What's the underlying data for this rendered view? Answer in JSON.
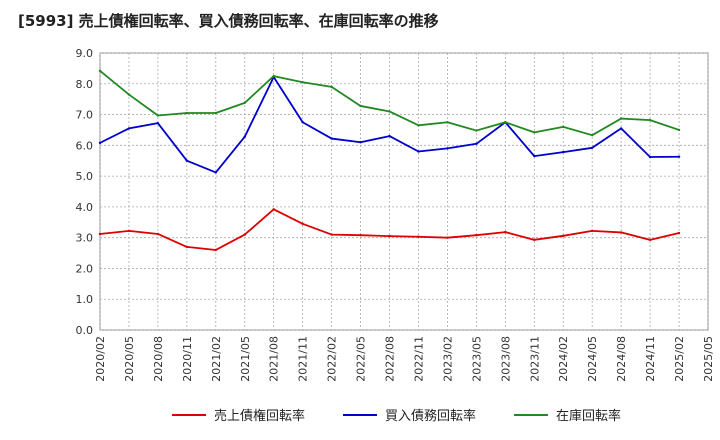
{
  "chart_data": {
    "type": "line",
    "title": "[5993]  売上債権回転率、買入債務回転率、在庫回転率の推移",
    "xlabel": "",
    "ylabel": "",
    "ylim": [
      0,
      9
    ],
    "yticks": [
      "0.0",
      "1.0",
      "2.0",
      "3.0",
      "4.0",
      "5.0",
      "6.0",
      "7.0",
      "8.0",
      "9.0"
    ],
    "x": [
      "2020/02",
      "2020/05",
      "2020/08",
      "2020/11",
      "2021/02",
      "2021/05",
      "2021/08",
      "2021/11",
      "2022/02",
      "2022/05",
      "2022/08",
      "2022/11",
      "2023/02",
      "2023/05",
      "2023/08",
      "2023/11",
      "2024/02",
      "2024/05",
      "2024/08",
      "2024/11",
      "2025/02",
      "2025/05"
    ],
    "grid": true,
    "legend_position": "bottom",
    "series": [
      {
        "name": "売上債権回転率",
        "color": "#dd0000",
        "values": [
          3.12,
          3.22,
          3.12,
          2.7,
          2.6,
          3.1,
          3.92,
          3.45,
          3.1,
          3.08,
          3.05,
          3.03,
          3.0,
          3.08,
          3.18,
          2.93,
          3.06,
          3.22,
          3.17,
          2.93,
          3.15,
          null
        ]
      },
      {
        "name": "買入債務回転率",
        "color": "#0000cc",
        "values": [
          6.08,
          6.55,
          6.72,
          5.5,
          5.12,
          6.28,
          8.22,
          6.75,
          6.22,
          6.1,
          6.3,
          5.8,
          5.9,
          6.05,
          6.75,
          5.65,
          5.78,
          5.92,
          6.55,
          5.62,
          5.63,
          null
        ]
      },
      {
        "name": "在庫回転率",
        "color": "#228822",
        "values": [
          8.42,
          7.65,
          6.97,
          7.05,
          7.05,
          7.38,
          8.25,
          8.05,
          7.9,
          7.28,
          7.1,
          6.65,
          6.75,
          6.48,
          6.75,
          6.42,
          6.6,
          6.33,
          6.87,
          6.82,
          6.5,
          null
        ]
      }
    ]
  }
}
